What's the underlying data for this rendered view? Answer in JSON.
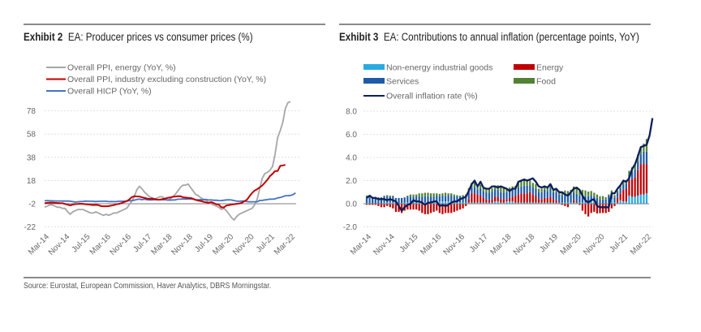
{
  "page": {
    "source": "Source: Eurostat, European Commission, Haver Analytics, DBRS Morningstar."
  },
  "chart_data": [
    {
      "type": "line",
      "exhibit": "Exhibit 2",
      "title": "EA: Producer prices vs consumer prices (%)",
      "xlabel": "",
      "ylabel": "",
      "ylim": [
        -22,
        88
      ],
      "yticks": [
        "78",
        "58",
        "38",
        "18",
        "-2",
        "-22"
      ],
      "ytick_values": [
        78,
        58,
        38,
        18,
        -2,
        -22
      ],
      "xticks": [
        "Mar-14",
        "Nov-14",
        "Jul-15",
        "Mar-16",
        "Nov-16",
        "Jul-17",
        "Mar-18",
        "Nov-18",
        "Jul-19",
        "Mar-20",
        "Nov-20",
        "Jul-21",
        "Mar-22"
      ],
      "x_start": "Mar-14",
      "x_end": "Mar-22",
      "frequency": "monthly",
      "grid": true,
      "legend_position": "top-left",
      "series": [
        {
          "name": "Overall PPI, energy (YoY, %)",
          "color": "#a6a6a6",
          "values": [
            -5,
            -4,
            -3,
            -3,
            -4,
            -5,
            -5,
            -6,
            -6,
            -9,
            -11,
            -9,
            -8,
            -7,
            -7,
            -7,
            -8,
            -9,
            -10,
            -10,
            -9,
            -10,
            -11,
            -12,
            -11,
            -12,
            -11,
            -10,
            -10,
            -9,
            -8,
            -7,
            -6,
            -3,
            0,
            4,
            10,
            13,
            11,
            8,
            6,
            4,
            3,
            2,
            3,
            4,
            4,
            2,
            1,
            2,
            4,
            6,
            9,
            12,
            14,
            14,
            15,
            12,
            9,
            6,
            5,
            3,
            2,
            1,
            -1,
            -2,
            -3,
            -4,
            -5,
            -7,
            -6,
            -8,
            -11,
            -14,
            -16,
            -13,
            -11,
            -10,
            -9,
            -8,
            -7,
            -6,
            -3,
            2,
            11,
            20,
            24,
            25,
            27,
            30,
            41,
            55,
            61,
            68,
            80,
            85,
            86
          ],
          "endpoint_note": "Mar-22 ≈ 86"
        },
        {
          "name": "Overall PPI, industry excluding construction (YoY, %)",
          "color": "#c00000",
          "values": [
            -1.6,
            -1.2,
            -1,
            -1,
            -1.2,
            -1.4,
            -1.5,
            -1.6,
            -2.2,
            -2.8,
            -3.5,
            -2.8,
            -2.3,
            -2.2,
            -2,
            -2.1,
            -2.4,
            -2.6,
            -2.9,
            -3.1,
            -3,
            -3.2,
            -4,
            -4.2,
            -4.2,
            -4,
            -3.6,
            -3.2,
            -2.5,
            -2.1,
            -1.5,
            -0.5,
            0.2,
            1.6,
            3.6,
            4.5,
            4.3,
            4.2,
            3.5,
            3.1,
            2.5,
            2.2,
            2.5,
            2.1,
            1.5,
            1.6,
            2,
            2.5,
            3,
            3.4,
            4,
            4.1,
            4.6,
            4.5,
            3.6,
            3.3,
            3,
            2.9,
            2.3,
            1.3,
            0.7,
            0.3,
            -0.3,
            -0.8,
            -1.2,
            -0.6,
            -1.4,
            -2.4,
            -2.8,
            -5,
            -5.2,
            -3.5,
            -3.2,
            -2.7,
            -2.4,
            -2,
            -1.8,
            -1.2,
            0.2,
            1.4,
            4.4,
            7.3,
            9.3,
            10.5,
            12.1,
            13.7,
            16.1,
            18.7,
            21.9,
            23.7,
            26.2,
            26.2,
            30.6,
            31,
            31.5
          ],
          "endpoint_note": "Mar-22 ≈ 31"
        },
        {
          "name": "Overall HICP (YoY, %)",
          "color": "#4472c4",
          "values": [
            0.5,
            0.7,
            0.5,
            0.5,
            0.4,
            0.4,
            0.4,
            0.3,
            0.4,
            0.3,
            0.2,
            -0.2,
            -0.6,
            -0.3,
            -0.1,
            0,
            0.3,
            0.2,
            0.2,
            0.1,
            -0.1,
            0.1,
            0.1,
            0.2,
            0.2,
            -0.2,
            -0.1,
            -0.2,
            -0.1,
            0.1,
            0.2,
            0.2,
            0.4,
            0.5,
            0.6,
            1.1,
            1.7,
            2,
            1.5,
            1.9,
            1.4,
            1.3,
            1.3,
            1.5,
            1.5,
            1.4,
            1.5,
            1.4,
            1.3,
            1.1,
            1.3,
            1.3,
            1.9,
            2,
            2.1,
            2,
            2.1,
            2.2,
            1.9,
            1.5,
            1.4,
            1.5,
            1.4,
            1.7,
            1.2,
            1.3,
            1,
            1,
            0.8,
            0.7,
            1,
            1.3,
            1.4,
            1.2,
            0.7,
            0.3,
            0.1,
            0.3,
            0.4,
            -0.2,
            -0.3,
            -0.3,
            -0.3,
            -0.3,
            0.9,
            0.9,
            1.3,
            1.6,
            2,
            1.9,
            2.2,
            3,
            3.4,
            4.1,
            4.9,
            5,
            5.1,
            5.9,
            7.4
          ],
          "endpoint_note": "Mar-22 ≈ 7"
        }
      ]
    },
    {
      "type": "bar",
      "stacked": true,
      "exhibit": "Exhibit 3",
      "title": "EA: Contributions to annual inflation (percentage points, YoY)",
      "xlabel": "",
      "ylabel": "",
      "ylim": [
        -2.0,
        8.0
      ],
      "yticks": [
        "8.0",
        "6.0",
        "4.0",
        "2.0",
        "0.0",
        "-2.0"
      ],
      "ytick_values": [
        8,
        6,
        4,
        2,
        0,
        -2
      ],
      "xticks": [
        "Mar-14",
        "Nov-14",
        "Jul-15",
        "Mar-16",
        "Nov-16",
        "Jul-17",
        "Mar-18",
        "Nov-18",
        "Jul-19",
        "Mar-20",
        "Nov-20",
        "Jul-21",
        "Mar-22"
      ],
      "x_start": "Mar-14",
      "x_end": "Mar-22",
      "frequency": "monthly",
      "grid": true,
      "legend_position": "top-left",
      "series": [
        {
          "name": "Non-energy industrial goods",
          "color": "#29abe2",
          "values": [
            0.06,
            0.04,
            0,
            0,
            0,
            0,
            0.1,
            0.1,
            0.1,
            0.1,
            0,
            0,
            0.05,
            0.1,
            0.1,
            0.1,
            0.1,
            0.1,
            0.1,
            0.1,
            0.1,
            0.1,
            0.1,
            0.1,
            0.2,
            0.2,
            0.2,
            0.2,
            0.2,
            0.2,
            0.1,
            0.1,
            0.1,
            0.1,
            0.1,
            0.1,
            0.1,
            0.1,
            0.1,
            0.1,
            0.1,
            0.1,
            0.1,
            0.1,
            0.2,
            0.2,
            0.1,
            0.1,
            0.2,
            0.2,
            0.2,
            0.1,
            0.1,
            0.1,
            0.1,
            0.1,
            0.1,
            0.1,
            0.1,
            0.1,
            0.1,
            0.1,
            0.1,
            0.1,
            0.1,
            0.1,
            0.1,
            0.1,
            0.1,
            0.1,
            0.1,
            0.1,
            0.1,
            0.1,
            0.1,
            0.1,
            0.1,
            0.2,
            0.2,
            -0.04,
            -0.01,
            0.01,
            0.01,
            0.1,
            0.4,
            0.1,
            0.1,
            0.3,
            0.2,
            0.2,
            0.7,
            0.6,
            0.6,
            0.7,
            0.8,
            0.8,
            0.9
          ],
          "note": "Values approximate; read from stacked bar heights"
        },
        {
          "name": "Services",
          "color": "#1f5aa6",
          "values": [
            0.45,
            0.5,
            0.5,
            0.5,
            0.55,
            0.55,
            0.5,
            0.55,
            0.5,
            0.5,
            0.5,
            0.5,
            0.45,
            0.45,
            0.5,
            0.5,
            0.5,
            0.5,
            0.5,
            0.5,
            0.55,
            0.55,
            0.5,
            0.5,
            0.5,
            0.45,
            0.5,
            0.45,
            0.5,
            0.5,
            0.5,
            0.55,
            0.5,
            0.55,
            0.5,
            0.55,
            0.5,
            0.55,
            0.45,
            0.65,
            0.55,
            0.6,
            0.65,
            0.65,
            0.65,
            0.6,
            0.6,
            0.55,
            0.6,
            0.6,
            0.6,
            0.55,
            0.6,
            0.6,
            0.65,
            0.65,
            0.6,
            0.6,
            0.6,
            0.6,
            0.6,
            0.7,
            0.6,
            0.75,
            0.6,
            0.7,
            0.6,
            0.65,
            0.65,
            0.6,
            0.7,
            0.7,
            0.65,
            0.6,
            0.6,
            0.55,
            0.55,
            0.5,
            0.45,
            0.5,
            0.35,
            0.35,
            0.35,
            0.6,
            0.55,
            0.45,
            0.45,
            0.45,
            0.45,
            0.45,
            0.45,
            0.65,
            0.65,
            0.75,
            0.9,
            1,
            1.1
          ]
        },
        {
          "name": "Energy",
          "color": "#c00000",
          "values": [
            -0.1,
            -0.1,
            -0.1,
            -0.1,
            -0.2,
            -0.3,
            -0.3,
            -0.2,
            -0.3,
            -0.4,
            -0.7,
            -0.7,
            -0.8,
            -0.6,
            -0.5,
            -0.5,
            -0.5,
            -0.5,
            -0.6,
            -0.8,
            -0.9,
            -0.9,
            -0.8,
            -0.7,
            -0.6,
            -0.8,
            -0.9,
            -0.8,
            -0.8,
            -0.8,
            -0.7,
            -0.6,
            -0.5,
            -0.4,
            -0.2,
            0.3,
            0.8,
            0.8,
            0.7,
            0.6,
            0.4,
            0.3,
            0.2,
            0.3,
            0.4,
            0.4,
            0.3,
            0.3,
            0.2,
            0.3,
            0.4,
            0.6,
            0.7,
            0.8,
            0.8,
            0.8,
            0.9,
            0.7,
            0.6,
            0.3,
            0.3,
            0.4,
            0.4,
            0.5,
            0.3,
            0.2,
            0.1,
            -0.1,
            -0.2,
            -0.3,
            0,
            0.2,
            0.1,
            -0.1,
            -0.6,
            -0.9,
            -1.1,
            -0.8,
            -0.7,
            -0.8,
            -0.8,
            -0.8,
            -0.8,
            -0.7,
            -0.4,
            -0.2,
            0.4,
            0.6,
            1,
            1.1,
            1.3,
            1.5,
            1.7,
            2.2,
            2.6,
            2.7,
            2.5,
            2.8,
            3.4,
            4.4
          ],
          "note": "Values approximate; read from stacked bar heights"
        },
        {
          "name": "Food",
          "color": "#538135",
          "values": [
            0.2,
            0.2,
            0.1,
            0.1,
            0,
            0,
            0.1,
            0.1,
            0.1,
            0.1,
            0,
            0,
            0,
            0,
            0.1,
            0.2,
            0.2,
            0.2,
            0.3,
            0.3,
            0.3,
            0.3,
            0.3,
            0.3,
            0.2,
            0.2,
            0.2,
            0.3,
            0.2,
            0.2,
            0.2,
            0.1,
            0.1,
            0.1,
            0.2,
            0.4,
            0.4,
            0.4,
            0.3,
            0.3,
            0.3,
            0.3,
            0.3,
            0.3,
            0.3,
            0.4,
            0.4,
            0.4,
            0.3,
            0.3,
            0.3,
            0.3,
            0.4,
            0.5,
            0.5,
            0.5,
            0.4,
            0.4,
            0.4,
            0.3,
            0.3,
            0.2,
            0.3,
            0.3,
            0.3,
            0.3,
            0.3,
            0.3,
            0.4,
            0.4,
            0.4,
            0.5,
            0.6,
            0.5,
            0.5,
            0.5,
            0.4,
            0.4,
            0.3,
            0.3,
            0.3,
            0.3,
            0.2,
            0.1,
            0.2,
            0.2,
            0.2,
            0.2,
            0.3,
            0.3,
            0.4,
            0.4,
            0.4,
            0.6,
            0.6,
            0.7,
            1.1
          ],
          "note": "Values approximate; read from stacked bar heights"
        },
        {
          "name": "Overall inflation rate (%)",
          "type": "line",
          "color": "#0d1f5c",
          "values": [
            0.5,
            0.7,
            0.5,
            0.5,
            0.4,
            0.4,
            0.4,
            0.3,
            0.4,
            0.3,
            0.2,
            -0.2,
            -0.6,
            -0.3,
            -0.1,
            0,
            0.3,
            0.2,
            0.2,
            0.1,
            -0.1,
            0.1,
            0.1,
            0.2,
            0.2,
            -0.2,
            -0.1,
            -0.2,
            -0.1,
            0.1,
            0.2,
            0.2,
            0.4,
            0.5,
            0.6,
            1.1,
            1.7,
            2,
            1.5,
            1.9,
            1.4,
            1.3,
            1.3,
            1.5,
            1.5,
            1.4,
            1.5,
            1.4,
            1.3,
            1.1,
            1.3,
            1.3,
            1.9,
            2,
            2.1,
            2,
            2.1,
            2.2,
            1.9,
            1.5,
            1.4,
            1.5,
            1.4,
            1.7,
            1.2,
            1.3,
            1,
            1,
            0.8,
            0.7,
            1,
            1.3,
            1.4,
            1.2,
            0.7,
            0.3,
            0.1,
            0.3,
            0.4,
            -0.2,
            -0.3,
            -0.3,
            -0.3,
            -0.3,
            0.9,
            0.9,
            1.3,
            1.6,
            2,
            1.9,
            2.2,
            3,
            3.4,
            4.1,
            4.9,
            5,
            5.1,
            5.9,
            7.4
          ]
        }
      ]
    }
  ]
}
